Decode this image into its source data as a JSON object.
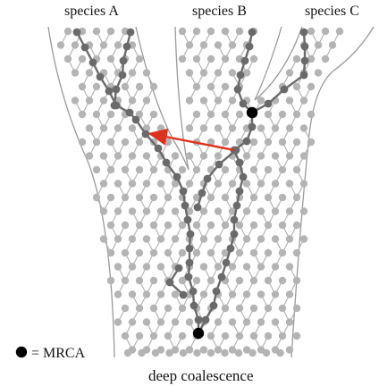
{
  "labels": {
    "species_a": "species A",
    "species_b": "species B",
    "species_c": "species C",
    "legend": "= MRCA",
    "caption": "deep coalescence"
  },
  "colors": {
    "background": "#ffffff",
    "boundary": "#9a9a9a",
    "individual": "#b4b4b4",
    "lineage": "#6a6a6a",
    "mrca": "#000000",
    "migration": "#e0301e"
  }
}
